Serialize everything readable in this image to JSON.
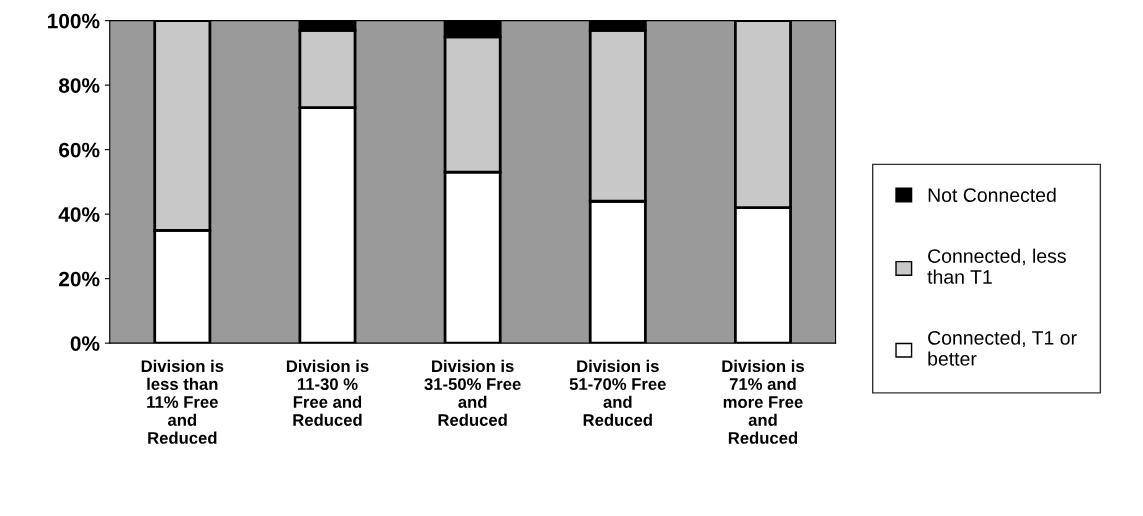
{
  "chart_data": {
    "type": "bar",
    "stacked": true,
    "categories": [
      "Division is\nless than\n11% Free\nand\nReduced",
      "Division is\n11-30 %\nFree and\nReduced",
      "Division is\n31-50% Free\nand\nReduced",
      "Division is\n51-70% Free\nand\nReduced",
      "Division is\n71% and\nmore Free\nand\nReduced"
    ],
    "series": [
      {
        "name": "Connected, T1 or\nbetter",
        "color": "#ffffff",
        "values": [
          35,
          73,
          53,
          44,
          42
        ]
      },
      {
        "name": "Connected, less\nthan T1",
        "color": "#c8c8c8",
        "values": [
          65,
          24,
          42,
          53,
          58
        ]
      },
      {
        "name": "Not Connected",
        "color": "#000000",
        "values": [
          0,
          3,
          5,
          3,
          0
        ]
      }
    ],
    "ylim": [
      0,
      100
    ],
    "yticks": [
      {
        "value": 0,
        "label": "0%"
      },
      {
        "value": 20,
        "label": "20%"
      },
      {
        "value": 40,
        "label": "40%"
      },
      {
        "value": 60,
        "label": "60%"
      },
      {
        "value": 80,
        "label": "80%"
      },
      {
        "value": 100,
        "label": "100%"
      }
    ],
    "grid": false,
    "legend": "right"
  }
}
